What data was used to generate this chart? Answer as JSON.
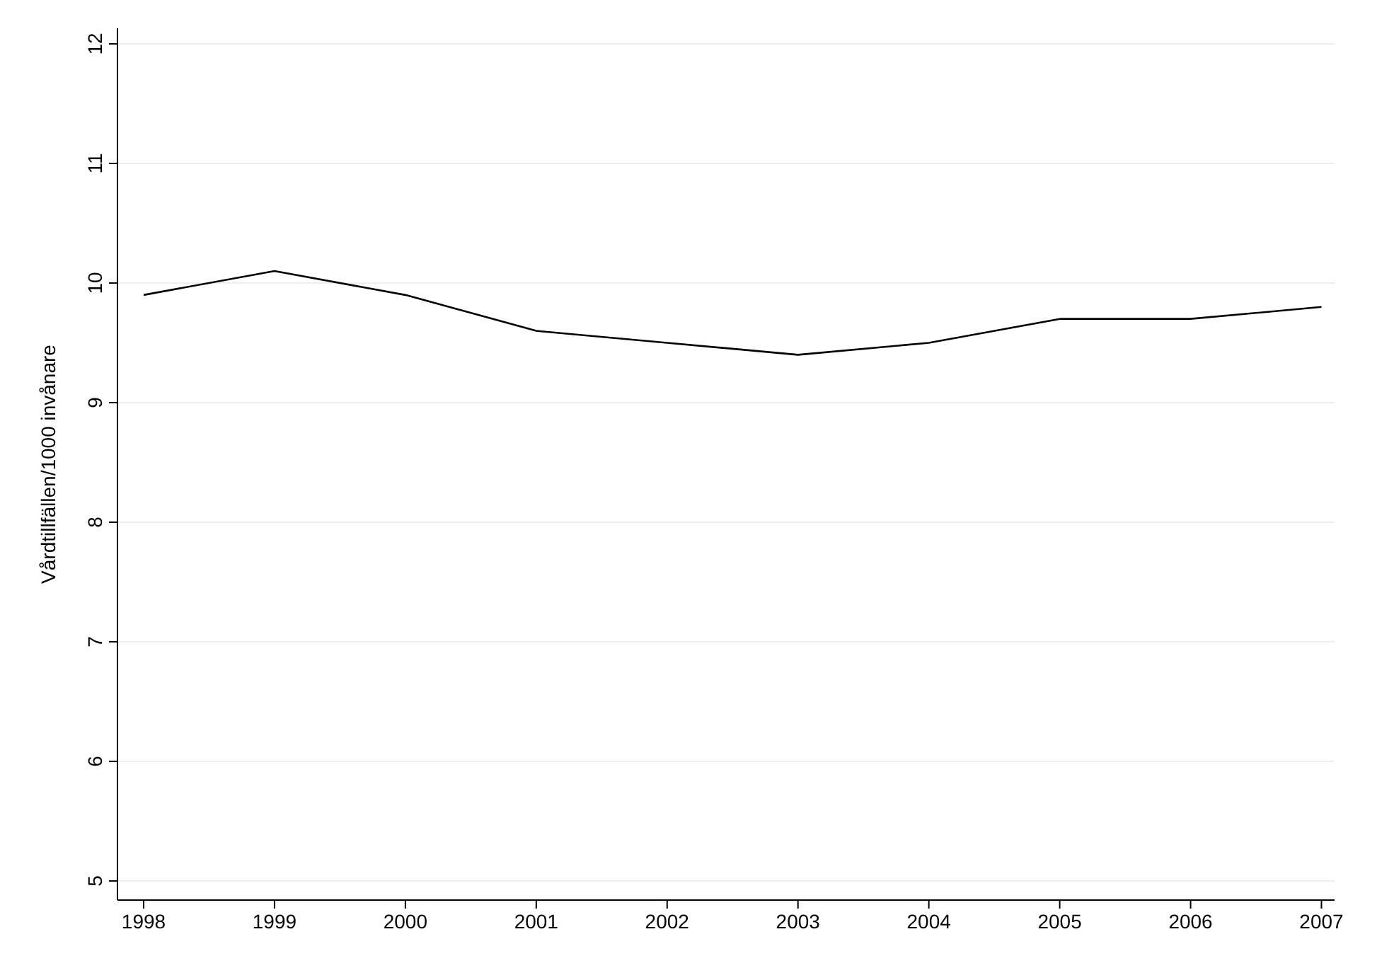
{
  "chart_data": {
    "type": "line",
    "ylabel": "Vårdtillfällen/1000 invånare",
    "x": [
      1998,
      1999,
      2000,
      2001,
      2002,
      2003,
      2004,
      2005,
      2006,
      2007
    ],
    "series": [
      {
        "color": "#000000",
        "values": [
          9.9,
          10.1,
          9.9,
          9.6,
          9.5,
          9.4,
          9.5,
          9.7,
          9.7,
          9.8
        ]
      }
    ],
    "xlim": [
      1997.8,
      2007.1
    ],
    "xticks": [
      1998,
      1999,
      2000,
      2001,
      2002,
      2003,
      2004,
      2005,
      2006,
      2007
    ],
    "ylim": [
      4.84,
      12.13
    ],
    "yticks": [
      5,
      6,
      7,
      8,
      9,
      10,
      11,
      12
    ],
    "grid": "y",
    "marker": "none",
    "line_style": "solid"
  }
}
